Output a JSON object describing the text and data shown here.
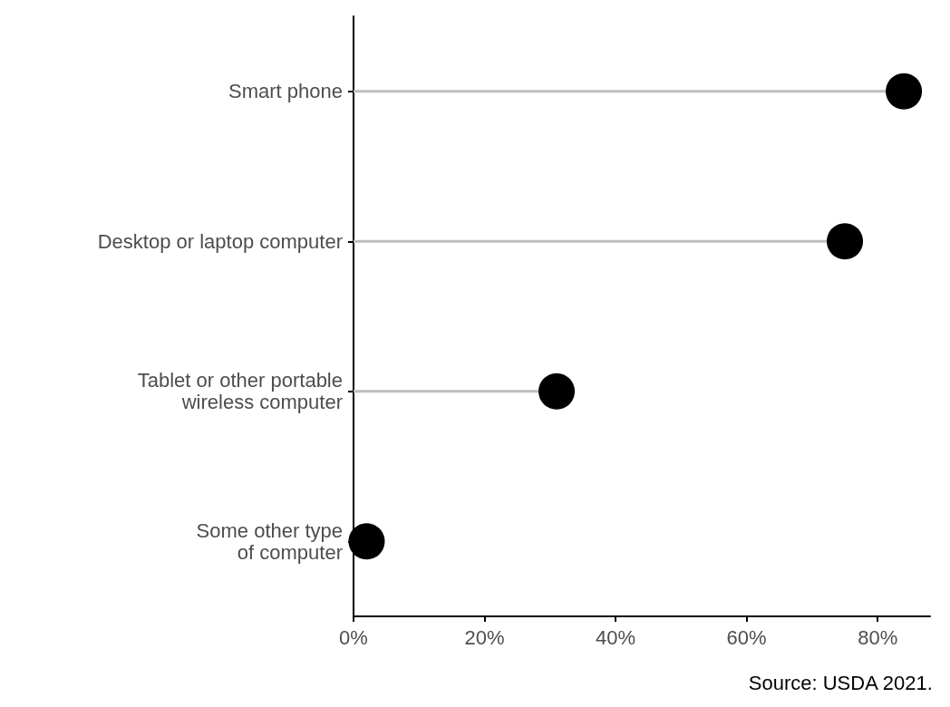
{
  "chart_data": {
    "type": "lollipop",
    "orientation": "horizontal",
    "categories": [
      "Smart phone",
      "Desktop or laptop computer",
      "Tablet or other portable\nwireless computer",
      "Some other type\nof computer"
    ],
    "values": [
      84,
      75,
      31,
      2
    ],
    "color": "#000000",
    "xlim": [
      0,
      88
    ],
    "xticks": [
      {
        "value": 0,
        "label": "0%"
      },
      {
        "value": 20,
        "label": "20%"
      },
      {
        "value": 40,
        "label": "40%"
      },
      {
        "value": 60,
        "label": "60%"
      },
      {
        "value": 80,
        "label": "80%"
      }
    ],
    "annotations": [
      "Source: USDA 2021."
    ]
  }
}
